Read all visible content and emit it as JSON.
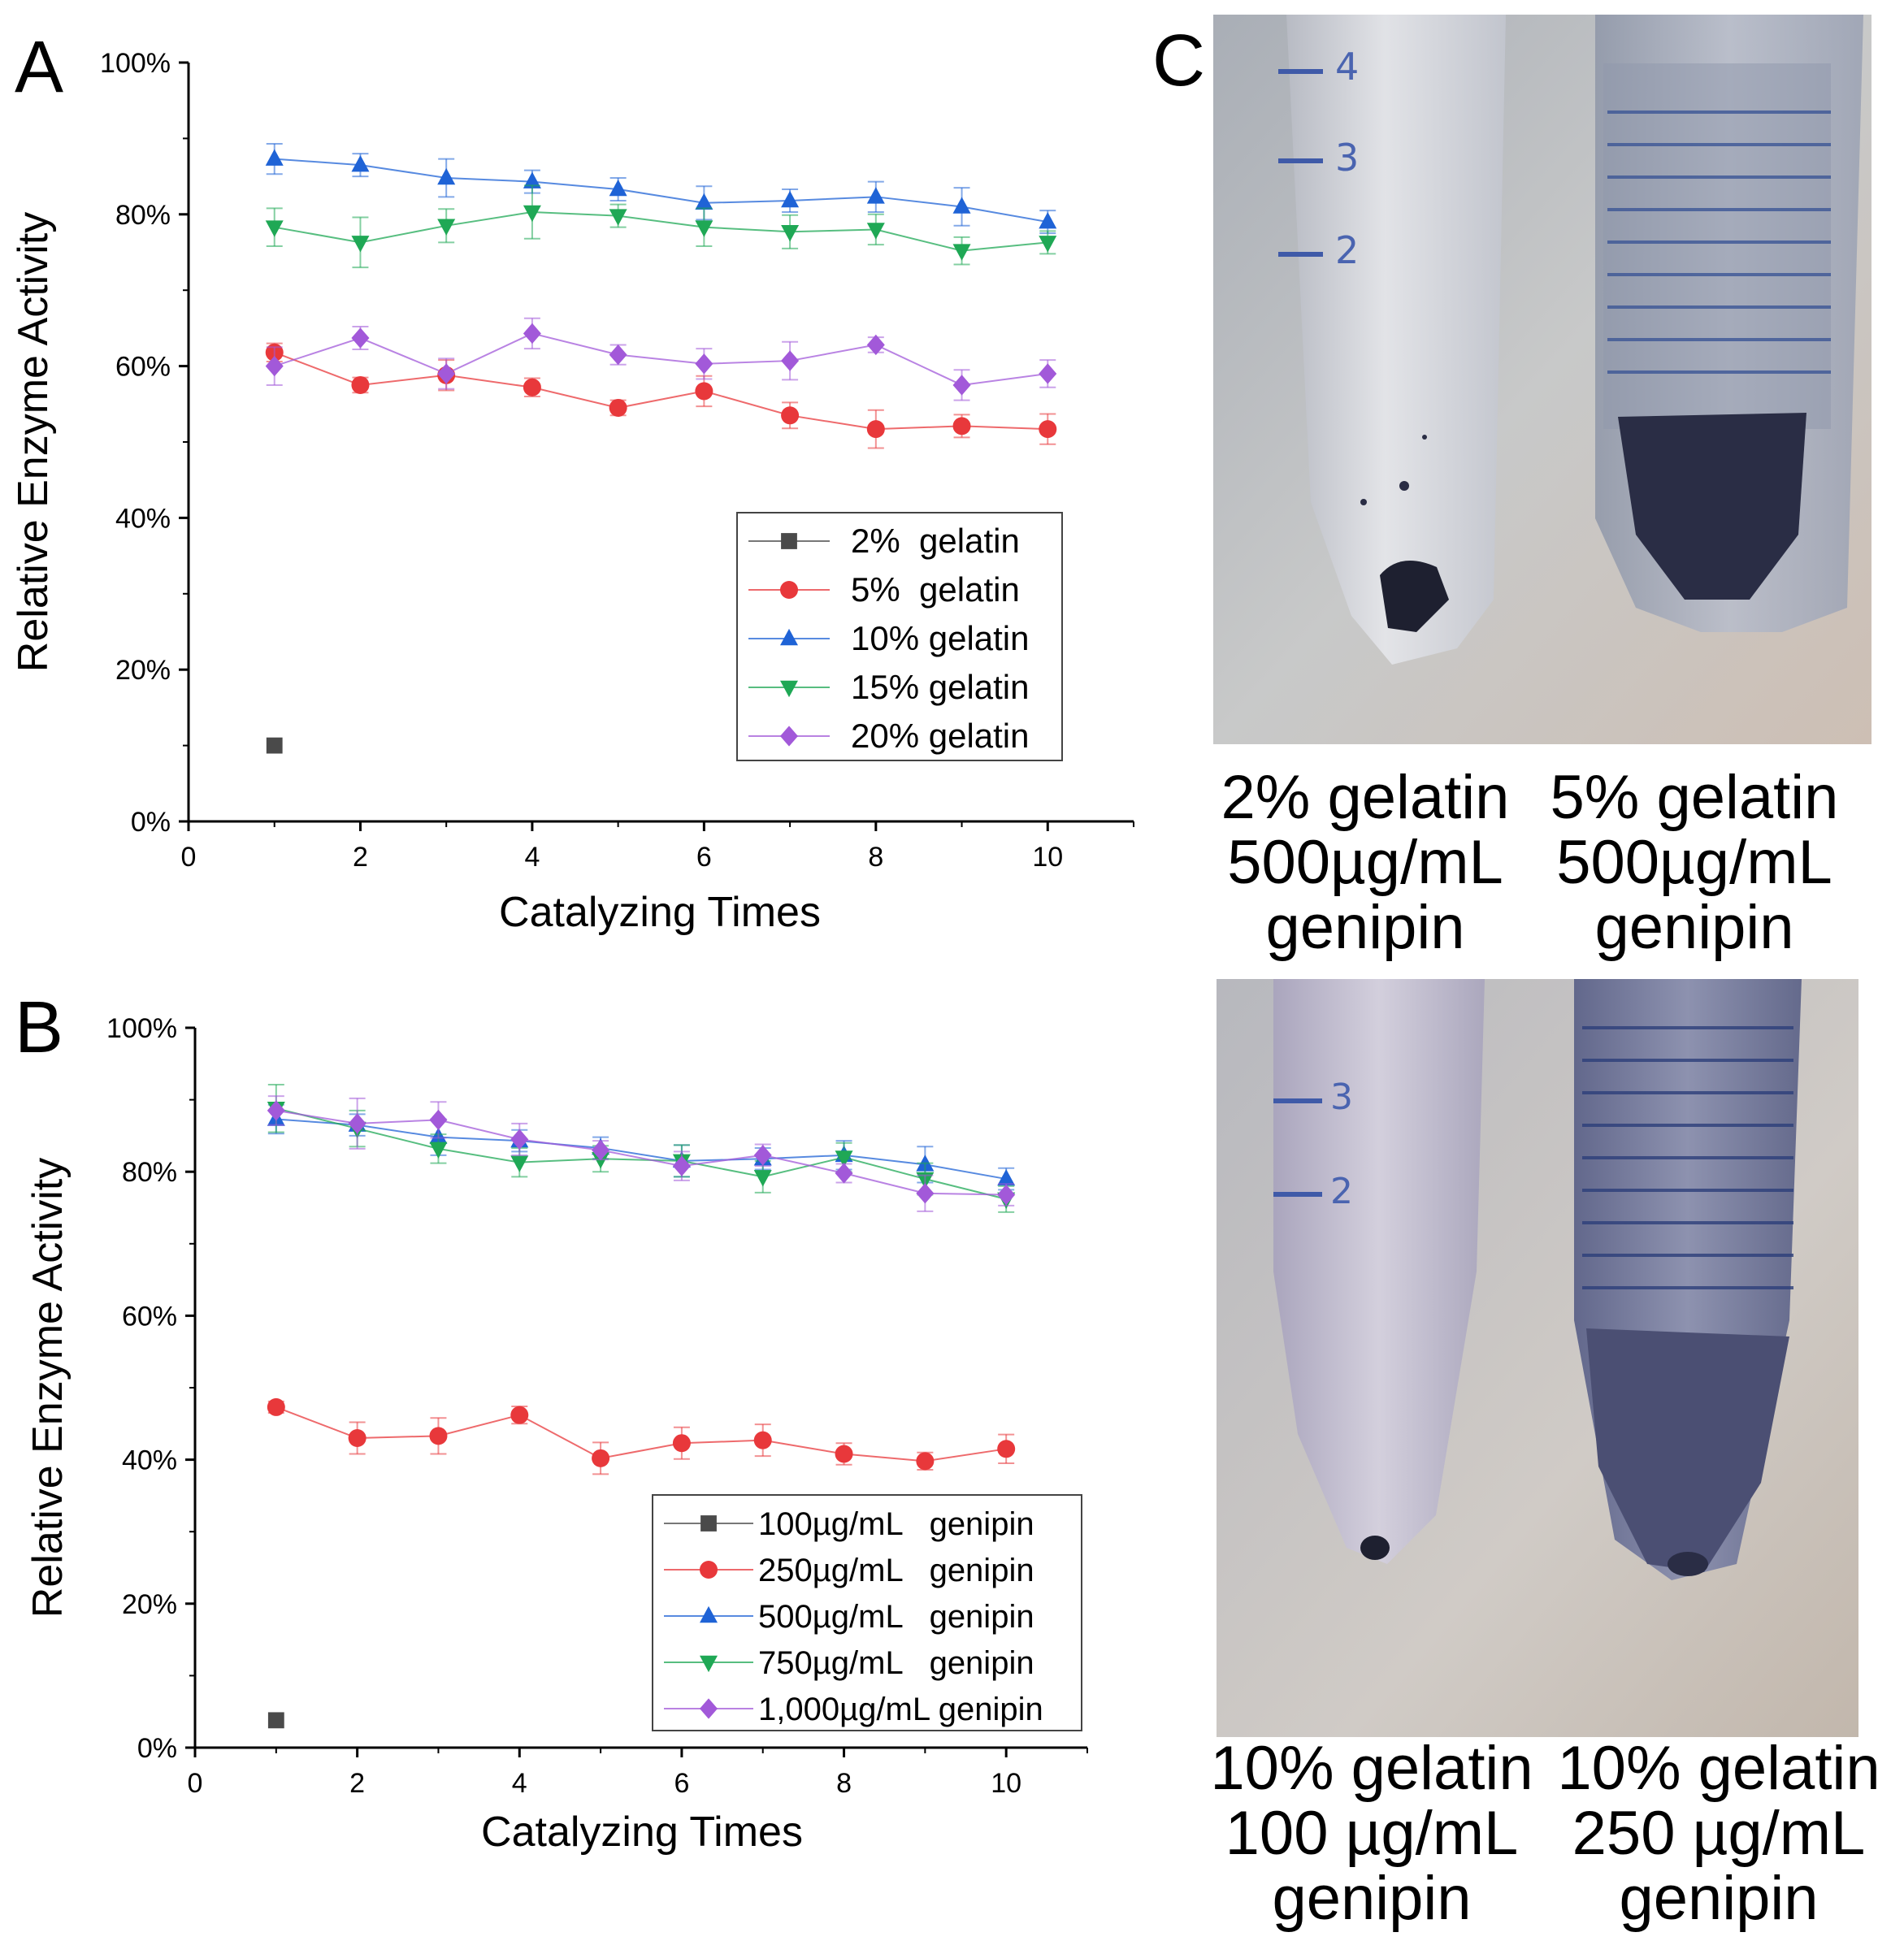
{
  "panels": {
    "a": "A",
    "b": "B",
    "c": "C"
  },
  "chart_data": [
    {
      "type": "line",
      "panel": "A",
      "title": "",
      "xlabel": "Catalyzing Times",
      "ylabel": "Relative Enzyme Activity",
      "xlim": [
        0,
        11
      ],
      "ylim": [
        0,
        100
      ],
      "xticks": [
        "0",
        "2",
        "4",
        "6",
        "8",
        "10"
      ],
      "yticks": [
        "0%",
        "20%",
        "40%",
        "60%",
        "80%",
        "100%"
      ],
      "legend_position": "lower-right",
      "x": [
        1,
        2,
        3,
        4,
        5,
        6,
        7,
        8,
        9,
        10
      ],
      "series": [
        {
          "name": "2%  gelatin",
          "marker": "square",
          "color": "#4a4a4a",
          "values": [
            10,
            null,
            null,
            null,
            null,
            null,
            null,
            null,
            null,
            null
          ],
          "errors": [
            0,
            0,
            0,
            0,
            0,
            0,
            0,
            0,
            0,
            0
          ]
        },
        {
          "name": "5%  gelatin",
          "marker": "circle",
          "color": "#e8383b",
          "values": [
            61.8,
            57.5,
            58.8,
            57.2,
            54.5,
            56.7,
            53.5,
            51.7,
            52.1,
            51.7
          ],
          "errors": [
            1.2,
            1.0,
            2.0,
            1.2,
            1.0,
            2.0,
            1.7,
            2.5,
            1.5,
            2.0
          ]
        },
        {
          "name": "10% gelatin",
          "marker": "triangle-up",
          "color": "#1f63d6",
          "values": [
            87.3,
            86.5,
            84.8,
            84.3,
            83.3,
            81.5,
            81.8,
            82.3,
            81.0,
            79.0
          ],
          "errors": [
            2.0,
            1.5,
            2.5,
            1.5,
            1.5,
            2.2,
            1.5,
            2.0,
            2.5,
            1.5
          ]
        },
        {
          "name": "15% gelatin",
          "marker": "triangle-down",
          "color": "#1fa855",
          "values": [
            78.3,
            76.3,
            78.5,
            80.3,
            79.8,
            78.3,
            77.7,
            78.0,
            75.2,
            76.3
          ],
          "errors": [
            2.5,
            3.3,
            2.2,
            3.5,
            1.5,
            2.5,
            2.2,
            2.0,
            1.8,
            1.5
          ]
        },
        {
          "name": "20% gelatin",
          "marker": "diamond",
          "color": "#a259d9",
          "values": [
            60.0,
            63.7,
            59.0,
            64.3,
            61.5,
            60.3,
            60.7,
            62.8,
            57.5,
            59.0
          ],
          "errors": [
            2.5,
            1.5,
            2.0,
            2.0,
            1.3,
            2.0,
            2.5,
            1.0,
            2.0,
            1.8
          ]
        }
      ]
    },
    {
      "type": "line",
      "panel": "B",
      "title": "",
      "xlabel": "Catalyzing Times",
      "ylabel": "Relative Enzyme Activity",
      "xlim": [
        0,
        11
      ],
      "ylim": [
        0,
        100
      ],
      "xticks": [
        "0",
        "2",
        "4",
        "6",
        "8",
        "10"
      ],
      "yticks": [
        "0%",
        "20%",
        "40%",
        "60%",
        "80%",
        "100%"
      ],
      "legend_position": "lower-right",
      "x": [
        1,
        2,
        3,
        4,
        5,
        6,
        7,
        8,
        9,
        10
      ],
      "series": [
        {
          "name": "100µg/mL   genipin",
          "marker": "square",
          "color": "#4a4a4a",
          "values": [
            3.8,
            null,
            null,
            null,
            null,
            null,
            null,
            null,
            null,
            null
          ],
          "errors": [
            0,
            0,
            0,
            0,
            0,
            0,
            0,
            0,
            0,
            0
          ]
        },
        {
          "name": "250µg/mL   genipin",
          "marker": "circle",
          "color": "#e8383b",
          "values": [
            47.3,
            43.0,
            43.3,
            46.2,
            40.2,
            42.3,
            42.7,
            40.8,
            39.8,
            41.5
          ],
          "errors": [
            0.8,
            2.2,
            2.5,
            1.2,
            2.2,
            2.2,
            2.2,
            1.5,
            1.2,
            2.0
          ]
        },
        {
          "name": "500µg/mL   genipin",
          "marker": "triangle-up",
          "color": "#1f63d6",
          "values": [
            87.3,
            86.5,
            84.8,
            84.3,
            83.3,
            81.5,
            81.8,
            82.3,
            81.0,
            79.0
          ],
          "errors": [
            2.0,
            1.5,
            2.5,
            1.5,
            1.5,
            2.2,
            1.5,
            2.0,
            2.5,
            1.5
          ]
        },
        {
          "name": "750µg/mL   genipin",
          "marker": "triangle-down",
          "color": "#1fa855",
          "values": [
            88.8,
            86.0,
            83.2,
            81.3,
            81.8,
            81.5,
            79.3,
            82.0,
            79.0,
            76.2
          ],
          "errors": [
            3.3,
            2.5,
            2.0,
            2.0,
            1.8,
            2.2,
            2.2,
            2.0,
            2.2,
            1.8
          ]
        },
        {
          "name": "1,000µg/mL genipin",
          "marker": "diamond",
          "color": "#a259d9",
          "values": [
            88.5,
            86.7,
            87.2,
            84.5,
            83.0,
            80.8,
            82.3,
            79.8,
            77.0,
            76.8
          ],
          "errors": [
            2.0,
            3.5,
            2.5,
            2.2,
            1.3,
            2.0,
            1.5,
            1.3,
            2.5,
            1.5
          ]
        }
      ]
    }
  ],
  "photos": {
    "top": {
      "captions": [
        {
          "line1": "2% gelatin",
          "line2": "500µg/mL",
          "line3": "genipin"
        },
        {
          "line1": "5% gelatin",
          "line2": "500µg/mL",
          "line3": "genipin"
        }
      ],
      "tube_marks": [
        "4",
        "3",
        "2"
      ]
    },
    "bottom": {
      "captions": [
        {
          "line1": "10% gelatin",
          "line2": "100 µg/mL",
          "line3": "genipin"
        },
        {
          "line1": "10% gelatin",
          "line2": "250 µg/mL",
          "line3": "genipin"
        }
      ],
      "tube_marks": [
        "3",
        "2"
      ]
    }
  },
  "colors": {
    "axis": "#000000",
    "photo_bg": "#c9c6c3",
    "tube": "#dcdde2",
    "gel_dark": "#2a2d45",
    "gel_violet": "#6f6a8c"
  }
}
